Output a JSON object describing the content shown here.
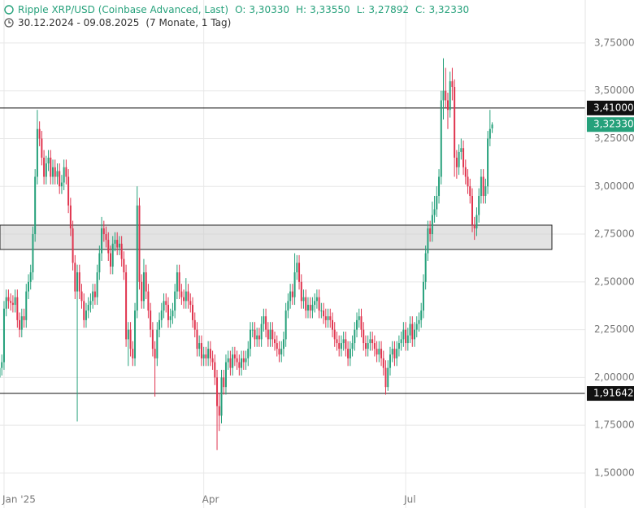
{
  "chart_data": {
    "type": "candlestick",
    "title": "Ripple XRP/USD (Coinbase Advanced, Last)",
    "ohlc": [
      {
        "key": "O:",
        "text": "3,30330"
      },
      {
        "key": "H:",
        "text": "3,33550"
      },
      {
        "key": "L:",
        "text": "3,27892"
      },
      {
        "key": "C:",
        "text": "3,32330"
      }
    ],
    "range": "30.12.2024 - 09.08.2025",
    "span": "(7 Monate, 1 Tag)",
    "up_color": "#26a17b",
    "down_color": "#e0344e",
    "grid": true,
    "ylim": [
      1.317,
      3.975
    ],
    "yticks": [
      {
        "value": 1.5,
        "label": "1,50000"
      },
      {
        "value": 1.75,
        "label": "1,75000"
      },
      {
        "value": 2.0,
        "label": "2,00000"
      },
      {
        "value": 2.25,
        "label": "2,25000"
      },
      {
        "value": 2.5,
        "label": "2,50000"
      },
      {
        "value": 2.75,
        "label": "2,75000"
      },
      {
        "value": 3.0,
        "label": "3,00000"
      },
      {
        "value": 3.25,
        "label": "3,25000"
      },
      {
        "value": 3.5,
        "label": "3,50000"
      },
      {
        "value": 3.75,
        "label": "3,75000"
      }
    ],
    "xticks": [
      {
        "value": 2,
        "label": "Jan '25"
      },
      {
        "value": 92,
        "label": "Apr"
      },
      {
        "value": 183,
        "label": "Jul"
      }
    ],
    "levels": [
      {
        "value": 3.41,
        "label": "3,41000"
      },
      {
        "value": 1.91642,
        "label": "1,91642"
      }
    ],
    "last_price": {
      "value": 3.3233,
      "label": "3,32330"
    },
    "zone": [
      2.67,
      2.797
    ],
    "candles": [
      [
        2.0,
        2.09,
        1.96,
        2.05
      ],
      [
        2.05,
        2.12,
        2.01,
        2.08
      ],
      [
        2.08,
        2.4,
        2.04,
        2.36
      ],
      [
        2.36,
        2.46,
        2.32,
        2.42
      ],
      [
        2.42,
        2.46,
        2.36,
        2.4
      ],
      [
        2.4,
        2.44,
        2.35,
        2.39
      ],
      [
        2.39,
        2.43,
        2.34,
        2.38
      ],
      [
        2.38,
        2.46,
        2.34,
        2.42
      ],
      [
        2.42,
        2.46,
        2.26,
        2.3
      ],
      [
        2.3,
        2.34,
        2.21,
        2.25
      ],
      [
        2.25,
        2.36,
        2.21,
        2.32
      ],
      [
        2.32,
        2.36,
        2.26,
        2.3
      ],
      [
        2.3,
        2.49,
        2.26,
        2.45
      ],
      [
        2.45,
        2.54,
        2.41,
        2.5
      ],
      [
        2.5,
        2.59,
        2.46,
        2.55
      ],
      [
        2.55,
        2.79,
        2.51,
        2.75
      ],
      [
        2.75,
        3.09,
        2.71,
        3.05
      ],
      [
        3.05,
        3.4,
        3.01,
        3.3
      ],
      [
        3.3,
        3.34,
        3.21,
        3.25
      ],
      [
        3.25,
        3.29,
        3.11,
        3.15
      ],
      [
        3.15,
        3.19,
        3.01,
        3.05
      ],
      [
        3.05,
        3.16,
        3.01,
        3.12
      ],
      [
        3.12,
        3.19,
        3.08,
        3.15
      ],
      [
        3.15,
        3.19,
        3.01,
        3.05
      ],
      [
        3.05,
        3.14,
        3.01,
        3.1
      ],
      [
        3.1,
        3.14,
        3.01,
        3.05
      ],
      [
        3.05,
        3.12,
        3.01,
        3.08
      ],
      [
        3.08,
        3.12,
        2.96,
        3.0
      ],
      [
        3.0,
        3.06,
        2.96,
        3.02
      ],
      [
        3.02,
        3.14,
        2.98,
        3.1
      ],
      [
        3.1,
        3.14,
        3.01,
        3.05
      ],
      [
        3.05,
        3.09,
        2.86,
        2.9
      ],
      [
        2.9,
        2.94,
        2.74,
        2.78
      ],
      [
        2.78,
        2.82,
        2.56,
        2.6
      ],
      [
        2.6,
        2.64,
        2.41,
        2.45
      ],
      [
        2.45,
        2.59,
        1.77,
        2.55
      ],
      [
        2.55,
        2.59,
        2.41,
        2.45
      ],
      [
        2.45,
        2.49,
        2.36,
        2.4
      ],
      [
        2.4,
        2.44,
        2.26,
        2.3
      ],
      [
        2.3,
        2.39,
        2.26,
        2.35
      ],
      [
        2.35,
        2.42,
        2.31,
        2.38
      ],
      [
        2.38,
        2.44,
        2.34,
        2.4
      ],
      [
        2.4,
        2.49,
        2.36,
        2.45
      ],
      [
        2.45,
        2.49,
        2.38,
        2.42
      ],
      [
        2.42,
        2.59,
        2.38,
        2.55
      ],
      [
        2.55,
        2.69,
        2.51,
        2.65
      ],
      [
        2.65,
        2.84,
        2.61,
        2.78
      ],
      [
        2.78,
        2.82,
        2.71,
        2.75
      ],
      [
        2.75,
        2.79,
        2.68,
        2.72
      ],
      [
        2.72,
        2.76,
        2.61,
        2.65
      ],
      [
        2.65,
        2.69,
        2.54,
        2.58
      ],
      [
        2.58,
        2.74,
        2.54,
        2.7
      ],
      [
        2.7,
        2.76,
        2.66,
        2.72
      ],
      [
        2.72,
        2.76,
        2.64,
        2.68
      ],
      [
        2.68,
        2.74,
        2.64,
        2.7
      ],
      [
        2.7,
        2.74,
        2.58,
        2.62
      ],
      [
        2.62,
        2.66,
        2.51,
        2.55
      ],
      [
        2.55,
        2.59,
        2.16,
        2.2
      ],
      [
        2.2,
        2.29,
        2.06,
        2.25
      ],
      [
        2.25,
        2.29,
        2.11,
        2.15
      ],
      [
        2.15,
        2.19,
        2.06,
        2.1
      ],
      [
        2.1,
        2.39,
        2.06,
        2.35
      ],
      [
        2.35,
        3.0,
        2.31,
        2.9
      ],
      [
        2.9,
        2.94,
        2.46,
        2.5
      ],
      [
        2.5,
        2.54,
        2.36,
        2.4
      ],
      [
        2.4,
        2.62,
        2.36,
        2.55
      ],
      [
        2.55,
        2.59,
        2.41,
        2.45
      ],
      [
        2.45,
        2.49,
        2.31,
        2.35
      ],
      [
        2.35,
        2.39,
        2.21,
        2.25
      ],
      [
        2.25,
        2.29,
        2.11,
        2.15
      ],
      [
        2.15,
        2.19,
        1.9,
        2.1
      ],
      [
        2.1,
        2.29,
        2.06,
        2.25
      ],
      [
        2.25,
        2.34,
        2.21,
        2.3
      ],
      [
        2.3,
        2.39,
        2.26,
        2.35
      ],
      [
        2.35,
        2.44,
        2.31,
        2.4
      ],
      [
        2.4,
        2.44,
        2.34,
        2.38
      ],
      [
        2.38,
        2.42,
        2.26,
        2.3
      ],
      [
        2.3,
        2.36,
        2.26,
        2.32
      ],
      [
        2.32,
        2.39,
        2.28,
        2.35
      ],
      [
        2.35,
        2.49,
        2.31,
        2.45
      ],
      [
        2.45,
        2.59,
        2.41,
        2.55
      ],
      [
        2.55,
        2.59,
        2.41,
        2.45
      ],
      [
        2.45,
        2.49,
        2.38,
        2.42
      ],
      [
        2.42,
        2.46,
        2.36,
        2.4
      ],
      [
        2.4,
        2.52,
        2.36,
        2.45
      ],
      [
        2.45,
        2.49,
        2.36,
        2.4
      ],
      [
        2.4,
        2.44,
        2.34,
        2.38
      ],
      [
        2.38,
        2.42,
        2.26,
        2.3
      ],
      [
        2.3,
        2.34,
        2.21,
        2.25
      ],
      [
        2.25,
        2.29,
        2.11,
        2.15
      ],
      [
        2.15,
        2.22,
        2.11,
        2.18
      ],
      [
        2.18,
        2.22,
        2.06,
        2.1
      ],
      [
        2.1,
        2.16,
        2.06,
        2.12
      ],
      [
        2.12,
        2.16,
        2.06,
        2.1
      ],
      [
        2.1,
        2.19,
        2.06,
        2.15
      ],
      [
        2.15,
        2.19,
        2.06,
        2.1
      ],
      [
        2.1,
        2.14,
        2.04,
        2.08
      ],
      [
        2.08,
        2.12,
        1.96,
        2.0
      ],
      [
        2.0,
        2.04,
        1.62,
        1.85
      ],
      [
        1.85,
        1.92,
        1.72,
        1.8
      ],
      [
        1.8,
        2.04,
        1.76,
        2.0
      ],
      [
        2.0,
        2.04,
        1.91,
        1.95
      ],
      [
        1.95,
        2.12,
        1.91,
        2.08
      ],
      [
        2.08,
        2.14,
        2.04,
        2.1
      ],
      [
        2.1,
        2.14,
        2.01,
        2.05
      ],
      [
        2.05,
        2.16,
        2.01,
        2.12
      ],
      [
        2.12,
        2.16,
        2.06,
        2.1
      ],
      [
        2.1,
        2.14,
        2.04,
        2.08
      ],
      [
        2.08,
        2.12,
        2.01,
        2.05
      ],
      [
        2.05,
        2.14,
        2.01,
        2.1
      ],
      [
        2.1,
        2.14,
        2.04,
        2.08
      ],
      [
        2.08,
        2.14,
        2.04,
        2.1
      ],
      [
        2.1,
        2.19,
        2.06,
        2.15
      ],
      [
        2.15,
        2.29,
        2.11,
        2.25
      ],
      [
        2.25,
        2.29,
        2.21,
        2.25
      ],
      [
        2.25,
        2.29,
        2.16,
        2.2
      ],
      [
        2.2,
        2.26,
        2.16,
        2.22
      ],
      [
        2.22,
        2.26,
        2.16,
        2.2
      ],
      [
        2.2,
        2.32,
        2.16,
        2.28
      ],
      [
        2.28,
        2.36,
        2.24,
        2.32
      ],
      [
        2.32,
        2.36,
        2.21,
        2.25
      ],
      [
        2.25,
        2.29,
        2.16,
        2.2
      ],
      [
        2.2,
        2.29,
        2.16,
        2.25
      ],
      [
        2.25,
        2.29,
        2.16,
        2.2
      ],
      [
        2.2,
        2.24,
        2.14,
        2.18
      ],
      [
        2.18,
        2.22,
        2.11,
        2.15
      ],
      [
        2.15,
        2.19,
        2.08,
        2.12
      ],
      [
        2.12,
        2.19,
        2.08,
        2.15
      ],
      [
        2.15,
        2.24,
        2.11,
        2.2
      ],
      [
        2.2,
        2.39,
        2.16,
        2.35
      ],
      [
        2.35,
        2.44,
        2.31,
        2.4
      ],
      [
        2.4,
        2.49,
        2.36,
        2.45
      ],
      [
        2.45,
        2.49,
        2.38,
        2.42
      ],
      [
        2.42,
        2.65,
        2.38,
        2.55
      ],
      [
        2.55,
        2.64,
        2.51,
        2.6
      ],
      [
        2.6,
        2.64,
        2.46,
        2.5
      ],
      [
        2.5,
        2.54,
        2.36,
        2.4
      ],
      [
        2.4,
        2.46,
        2.36,
        2.42
      ],
      [
        2.42,
        2.46,
        2.31,
        2.35
      ],
      [
        2.35,
        2.42,
        2.31,
        2.38
      ],
      [
        2.38,
        2.42,
        2.31,
        2.35
      ],
      [
        2.35,
        2.42,
        2.31,
        2.38
      ],
      [
        2.38,
        2.44,
        2.34,
        2.4
      ],
      [
        2.4,
        2.46,
        2.36,
        2.42
      ],
      [
        2.42,
        2.46,
        2.31,
        2.35
      ],
      [
        2.35,
        2.39,
        2.31,
        2.35
      ],
      [
        2.35,
        2.39,
        2.28,
        2.32
      ],
      [
        2.32,
        2.36,
        2.26,
        2.3
      ],
      [
        2.3,
        2.36,
        2.26,
        2.32
      ],
      [
        2.32,
        2.36,
        2.26,
        2.3
      ],
      [
        2.3,
        2.34,
        2.21,
        2.25
      ],
      [
        2.25,
        2.29,
        2.16,
        2.2
      ],
      [
        2.2,
        2.24,
        2.14,
        2.18
      ],
      [
        2.18,
        2.22,
        2.11,
        2.15
      ],
      [
        2.15,
        2.22,
        2.11,
        2.18
      ],
      [
        2.18,
        2.24,
        2.14,
        2.2
      ],
      [
        2.2,
        2.24,
        2.11,
        2.15
      ],
      [
        2.15,
        2.19,
        2.06,
        2.1
      ],
      [
        2.1,
        2.19,
        2.06,
        2.15
      ],
      [
        2.15,
        2.22,
        2.11,
        2.18
      ],
      [
        2.18,
        2.29,
        2.14,
        2.25
      ],
      [
        2.25,
        2.34,
        2.21,
        2.3
      ],
      [
        2.3,
        2.36,
        2.26,
        2.32
      ],
      [
        2.32,
        2.36,
        2.21,
        2.25
      ],
      [
        2.25,
        2.29,
        2.14,
        2.18
      ],
      [
        2.18,
        2.22,
        2.11,
        2.15
      ],
      [
        2.15,
        2.22,
        2.11,
        2.18
      ],
      [
        2.18,
        2.24,
        2.14,
        2.2
      ],
      [
        2.2,
        2.24,
        2.14,
        2.18
      ],
      [
        2.18,
        2.22,
        2.11,
        2.15
      ],
      [
        2.15,
        2.19,
        2.08,
        2.12
      ],
      [
        2.12,
        2.19,
        2.08,
        2.15
      ],
      [
        2.15,
        2.19,
        2.06,
        2.1
      ],
      [
        2.1,
        2.14,
        2.01,
        2.05
      ],
      [
        2.05,
        2.09,
        1.91,
        1.95
      ],
      [
        1.95,
        2.09,
        1.93,
        2.05
      ],
      [
        2.05,
        2.16,
        2.01,
        2.12
      ],
      [
        2.12,
        2.19,
        2.08,
        2.15
      ],
      [
        2.15,
        2.19,
        2.06,
        2.1
      ],
      [
        2.1,
        2.19,
        2.06,
        2.15
      ],
      [
        2.15,
        2.22,
        2.11,
        2.18
      ],
      [
        2.18,
        2.24,
        2.14,
        2.2
      ],
      [
        2.2,
        2.29,
        2.16,
        2.25
      ],
      [
        2.25,
        2.29,
        2.14,
        2.18
      ],
      [
        2.18,
        2.26,
        2.14,
        2.22
      ],
      [
        2.22,
        2.32,
        2.18,
        2.28
      ],
      [
        2.28,
        2.32,
        2.16,
        2.2
      ],
      [
        2.2,
        2.29,
        2.16,
        2.25
      ],
      [
        2.25,
        2.32,
        2.21,
        2.28
      ],
      [
        2.28,
        2.34,
        2.24,
        2.3
      ],
      [
        2.3,
        2.39,
        2.26,
        2.35
      ],
      [
        2.35,
        2.54,
        2.31,
        2.5
      ],
      [
        2.5,
        2.69,
        2.46,
        2.65
      ],
      [
        2.65,
        2.82,
        2.61,
        2.78
      ],
      [
        2.78,
        2.82,
        2.71,
        2.75
      ],
      [
        2.75,
        2.92,
        2.71,
        2.85
      ],
      [
        2.85,
        2.95,
        2.81,
        2.88
      ],
      [
        2.88,
        3.0,
        2.84,
        2.95
      ],
      [
        2.95,
        3.09,
        2.91,
        3.05
      ],
      [
        3.05,
        3.5,
        3.01,
        3.45
      ],
      [
        3.45,
        3.67,
        3.35,
        3.5
      ],
      [
        3.5,
        3.62,
        3.41,
        3.45
      ],
      [
        3.45,
        3.49,
        3.3,
        3.4
      ],
      [
        3.4,
        3.6,
        3.36,
        3.55
      ],
      [
        3.55,
        3.62,
        3.45,
        3.52
      ],
      [
        3.52,
        3.56,
        3.05,
        3.15
      ],
      [
        3.15,
        3.19,
        3.04,
        3.1
      ],
      [
        3.1,
        3.22,
        3.06,
        3.18
      ],
      [
        3.18,
        3.25,
        3.14,
        3.2
      ],
      [
        3.2,
        3.24,
        3.06,
        3.1
      ],
      [
        3.1,
        3.14,
        3.01,
        3.05
      ],
      [
        3.05,
        3.09,
        2.96,
        3.0
      ],
      [
        3.0,
        3.04,
        2.91,
        2.95
      ],
      [
        2.95,
        2.99,
        2.76,
        2.8
      ],
      [
        2.8,
        2.84,
        2.72,
        2.78
      ],
      [
        2.78,
        2.89,
        2.74,
        2.85
      ],
      [
        2.85,
        2.99,
        2.81,
        2.95
      ],
      [
        2.95,
        3.09,
        2.91,
        3.05
      ],
      [
        3.05,
        3.09,
        2.91,
        2.95
      ],
      [
        2.95,
        3.04,
        2.91,
        3.0
      ],
      [
        3.0,
        3.29,
        2.96,
        3.25
      ],
      [
        3.25,
        3.4,
        3.21,
        3.3
      ],
      [
        3.3033,
        3.3355,
        3.27892,
        3.3233
      ]
    ]
  }
}
